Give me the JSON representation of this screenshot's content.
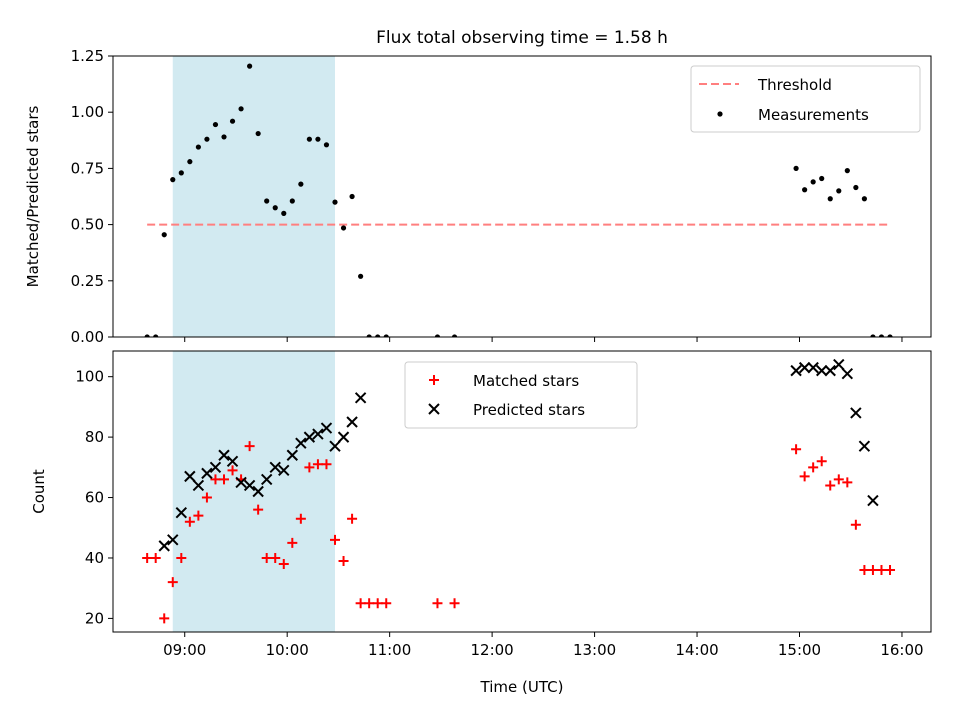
{
  "figure": {
    "title": "Flux total observing time = 1.58 h"
  },
  "chart_data": [
    {
      "type": "scatter",
      "panel": "top",
      "ylabel": "Matched/Predicted stars",
      "xlabel": "",
      "xlim": [
        "08:18",
        "16:17"
      ],
      "ylim": [
        0,
        1.25
      ],
      "yticks": [
        0.0,
        0.25,
        0.5,
        0.75,
        1.0,
        1.25
      ],
      "ytick_labels": [
        "0.00",
        "0.25",
        "0.50",
        "0.75",
        "1.00",
        "1.25"
      ],
      "grid": false,
      "legend_position": "top-right",
      "shaded_span": {
        "start": "08:53",
        "end": "10:28",
        "color": "#add8e6"
      },
      "threshold": {
        "name": "Threshold",
        "value": 0.5,
        "x_range": [
          "08:38",
          "15:53"
        ],
        "color": "#ff7f7f",
        "style": "dashed"
      },
      "series": [
        {
          "name": "Measurements",
          "color": "#000000",
          "marker": "dot",
          "points": [
            [
              "08:38",
              0.0
            ],
            [
              "08:43",
              0.0
            ],
            [
              "08:48",
              0.455
            ],
            [
              "08:53",
              0.7
            ],
            [
              "08:58",
              0.73
            ],
            [
              "09:03",
              0.78
            ],
            [
              "09:08",
              0.845
            ],
            [
              "09:13",
              0.88
            ],
            [
              "09:18",
              0.945
            ],
            [
              "09:23",
              0.89
            ],
            [
              "09:28",
              0.96
            ],
            [
              "09:33",
              1.015
            ],
            [
              "09:38",
              1.205
            ],
            [
              "09:43",
              0.905
            ],
            [
              "09:48",
              0.605
            ],
            [
              "09:53",
              0.575
            ],
            [
              "09:58",
              0.55
            ],
            [
              "10:03",
              0.605
            ],
            [
              "10:08",
              0.68
            ],
            [
              "10:13",
              0.88
            ],
            [
              "10:18",
              0.88
            ],
            [
              "10:23",
              0.855
            ],
            [
              "10:28",
              0.6
            ],
            [
              "10:33",
              0.485
            ],
            [
              "10:38",
              0.625
            ],
            [
              "10:43",
              0.27
            ],
            [
              "10:48",
              0.0
            ],
            [
              "10:53",
              0.0
            ],
            [
              "10:58",
              0.0
            ],
            [
              "11:28",
              0.0
            ],
            [
              "11:38",
              0.0
            ],
            [
              "14:58",
              0.75
            ],
            [
              "15:03",
              0.655
            ],
            [
              "15:08",
              0.69
            ],
            [
              "15:13",
              0.705
            ],
            [
              "15:18",
              0.615
            ],
            [
              "15:23",
              0.65
            ],
            [
              "15:28",
              0.74
            ],
            [
              "15:33",
              0.665
            ],
            [
              "15:38",
              0.615
            ],
            [
              "15:43",
              0.0
            ],
            [
              "15:48",
              0.0
            ],
            [
              "15:53",
              0.0
            ]
          ]
        }
      ]
    },
    {
      "type": "scatter",
      "panel": "bottom",
      "xlabel": "Time (UTC)",
      "ylabel": "Count",
      "xlim": [
        "08:18",
        "16:17"
      ],
      "ylim": [
        15.5,
        108.5
      ],
      "yticks": [
        20,
        40,
        60,
        80,
        100
      ],
      "xticks": [
        "09:00",
        "10:00",
        "11:00",
        "12:00",
        "13:00",
        "14:00",
        "15:00",
        "16:00"
      ],
      "grid": false,
      "legend_position": "top-center",
      "shaded_span": {
        "start": "08:53",
        "end": "10:28",
        "color": "#add8e6"
      },
      "series": [
        {
          "name": "Matched stars",
          "color": "#ff0000",
          "marker": "plus",
          "points": [
            [
              "08:38",
              40
            ],
            [
              "08:43",
              40
            ],
            [
              "08:48",
              20
            ],
            [
              "08:53",
              32
            ],
            [
              "08:58",
              40
            ],
            [
              "09:03",
              52
            ],
            [
              "09:08",
              54
            ],
            [
              "09:13",
              60
            ],
            [
              "09:18",
              66
            ],
            [
              "09:23",
              66
            ],
            [
              "09:28",
              69
            ],
            [
              "09:33",
              66
            ],
            [
              "09:38",
              77
            ],
            [
              "09:43",
              56
            ],
            [
              "09:48",
              40
            ],
            [
              "09:53",
              40
            ],
            [
              "09:58",
              38
            ],
            [
              "10:03",
              45
            ],
            [
              "10:08",
              53
            ],
            [
              "10:13",
              70
            ],
            [
              "10:18",
              71
            ],
            [
              "10:23",
              71
            ],
            [
              "10:28",
              46
            ],
            [
              "10:33",
              39
            ],
            [
              "10:38",
              53
            ],
            [
              "10:43",
              25
            ],
            [
              "10:48",
              25
            ],
            [
              "10:53",
              25
            ],
            [
              "10:58",
              25
            ],
            [
              "11:28",
              25
            ],
            [
              "11:38",
              25
            ],
            [
              "14:58",
              76
            ],
            [
              "15:03",
              67
            ],
            [
              "15:08",
              70
            ],
            [
              "15:13",
              72
            ],
            [
              "15:18",
              64
            ],
            [
              "15:23",
              66
            ],
            [
              "15:28",
              65
            ],
            [
              "15:33",
              51
            ],
            [
              "15:38",
              36
            ],
            [
              "15:43",
              36
            ],
            [
              "15:48",
              36
            ],
            [
              "15:53",
              36
            ]
          ]
        },
        {
          "name": "Predicted stars",
          "color": "#000000",
          "marker": "x",
          "points": [
            [
              "08:48",
              44
            ],
            [
              "08:53",
              46
            ],
            [
              "08:58",
              55
            ],
            [
              "09:03",
              67
            ],
            [
              "09:08",
              64
            ],
            [
              "09:13",
              68
            ],
            [
              "09:18",
              70
            ],
            [
              "09:23",
              74
            ],
            [
              "09:28",
              72
            ],
            [
              "09:33",
              65
            ],
            [
              "09:38",
              64
            ],
            [
              "09:43",
              62
            ],
            [
              "09:48",
              66
            ],
            [
              "09:53",
              70
            ],
            [
              "09:58",
              69
            ],
            [
              "10:03",
              74
            ],
            [
              "10:08",
              78
            ],
            [
              "10:13",
              80
            ],
            [
              "10:18",
              81
            ],
            [
              "10:23",
              83
            ],
            [
              "10:28",
              77
            ],
            [
              "10:33",
              80
            ],
            [
              "10:38",
              85
            ],
            [
              "10:43",
              93
            ],
            [
              "14:58",
              102
            ],
            [
              "15:03",
              103
            ],
            [
              "15:08",
              103
            ],
            [
              "15:13",
              102
            ],
            [
              "15:18",
              102
            ],
            [
              "15:23",
              104
            ],
            [
              "15:28",
              101
            ],
            [
              "15:33",
              88
            ],
            [
              "15:38",
              77
            ],
            [
              "15:43",
              59
            ]
          ]
        }
      ]
    }
  ]
}
